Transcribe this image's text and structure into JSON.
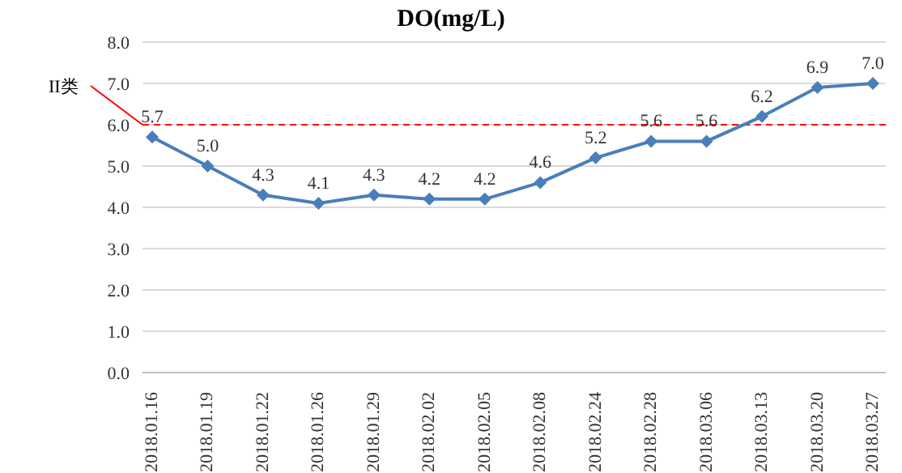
{
  "chart_data": {
    "type": "line",
    "title": "DO(mg/L)",
    "categories": [
      "2018.01.16",
      "2018.01.19",
      "2018.01.22",
      "2018.01.26",
      "2018.01.29",
      "2018.02.02",
      "2018.02.05",
      "2018.02.08",
      "2018.02.24",
      "2018.02.28",
      "2018.03.06",
      "2018.03.13",
      "2018.03.20",
      "2018.03.27"
    ],
    "series": [
      {
        "color": "#4a7ebb",
        "values": [
          5.7,
          5.0,
          4.3,
          4.1,
          4.3,
          4.2,
          4.2,
          4.6,
          5.2,
          5.6,
          5.6,
          6.2,
          6.9,
          7.0
        ],
        "value_labels": [
          "5.7",
          "5.0",
          "4.3",
          "4.1",
          "4.3",
          "4.2",
          "4.2",
          "4.6",
          "5.2",
          "5.6",
          "5.6",
          "6.2",
          "6.9",
          "7.0"
        ]
      }
    ],
    "ylim": [
      0,
      8
    ],
    "yticks": [
      {
        "value": 0,
        "label": "0.0"
      },
      {
        "value": 1,
        "label": "1.0"
      },
      {
        "value": 2,
        "label": "2.0"
      },
      {
        "value": 3,
        "label": "3.0"
      },
      {
        "value": 4,
        "label": "4.0"
      },
      {
        "value": 5,
        "label": "5.0"
      },
      {
        "value": 6,
        "label": "6.0"
      },
      {
        "value": 7,
        "label": "7.0"
      },
      {
        "value": 8,
        "label": "8.0"
      }
    ],
    "grid": "y",
    "marker": "diamond",
    "line_style": "solid",
    "legend": false,
    "ref_lines": [
      {
        "axis": "y",
        "value": 6.0,
        "label": "II类",
        "color": "#ff0000",
        "line_style": "dashed"
      }
    ]
  }
}
